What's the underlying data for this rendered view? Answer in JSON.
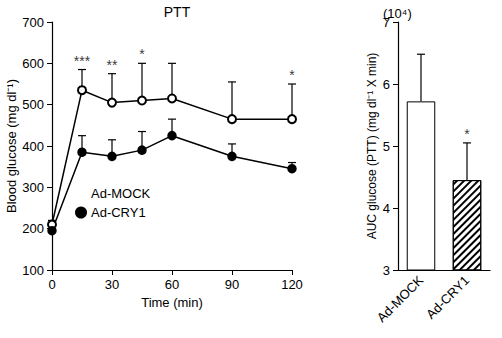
{
  "chart_data": [
    {
      "type": "line",
      "title": "PTT",
      "x_label": "Time (min)",
      "y_label": "Blood glucose (mg dl⁻¹)",
      "x": [
        0,
        15,
        30,
        45,
        60,
        90,
        120
      ],
      "xlim": [
        0,
        120
      ],
      "xticks": [
        0,
        30,
        60,
        90,
        120
      ],
      "ylim": [
        100,
        700
      ],
      "yticks": [
        100,
        200,
        300,
        400,
        500,
        600,
        700
      ],
      "grid": false,
      "legend": "lower left",
      "series": [
        {
          "name": "Ad-MOCK",
          "color": "#000000",
          "marker": "open circle",
          "values": [
            210,
            535,
            505,
            510,
            515,
            465,
            465
          ],
          "errors": [
            10,
            50,
            70,
            90,
            85,
            90,
            85
          ]
        },
        {
          "name": "Ad-CRY1",
          "color": "#000000",
          "marker": "filled circle",
          "values": [
            195,
            385,
            375,
            390,
            425,
            375,
            345
          ],
          "errors": [
            15,
            40,
            40,
            45,
            40,
            30,
            15
          ]
        }
      ],
      "annotations": [
        {
          "x": 15,
          "text": "***"
        },
        {
          "x": 30,
          "text": "**"
        },
        {
          "x": 45,
          "text": "*"
        },
        {
          "x": 120,
          "text": "*"
        }
      ]
    },
    {
      "type": "bar",
      "y_scale_label": "(10⁴)",
      "y_label": "AUC glucose (PTT) (mg dl⁻¹ X min)",
      "categories": [
        "Ad-MOCK",
        "Ad-CRY1"
      ],
      "values": [
        5.72,
        4.45
      ],
      "errors": [
        0.76,
        0.6
      ],
      "ylim": [
        3,
        7
      ],
      "yticks": [
        3,
        4,
        5,
        6,
        7
      ],
      "grid": false,
      "annotations": [
        {
          "category": "Ad-CRY1",
          "text": "*"
        }
      ]
    }
  ]
}
